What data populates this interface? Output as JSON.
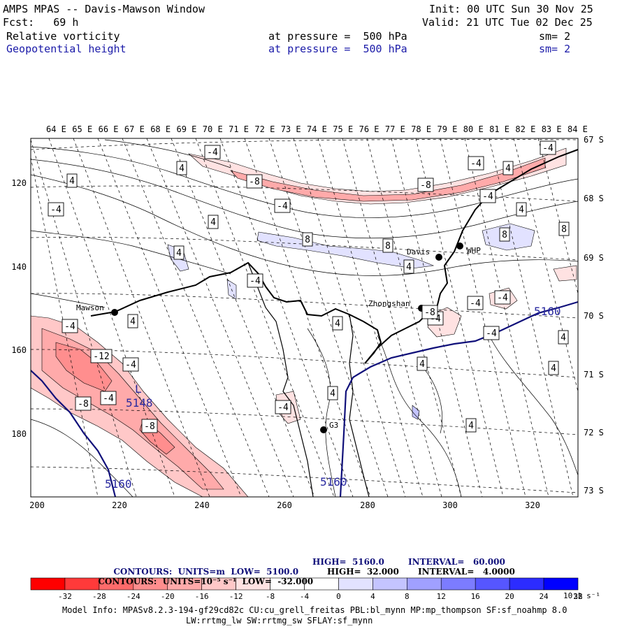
{
  "header": {
    "title": "AMPS MPAS -- Davis-Mawson Window",
    "forecast": "Fcst:   69 h",
    "init": "Init: 00 UTC Sun 30 Nov 25",
    "valid": "Valid: 21 UTC Tue 02 Dec 25",
    "field1": {
      "name": "Relative vorticity",
      "pressure": "at pressure =  500 hPa",
      "sm": "sm= 2"
    },
    "field2": {
      "name": "Geopotential height",
      "pressure": "at pressure =  500 hPa",
      "sm": "sm= 2"
    }
  },
  "map": {
    "top_lon_labels": [
      "64 E",
      "65 E",
      "66 E",
      "67 E",
      "68 E",
      "69 E",
      "70 E",
      "71 E",
      "72 E",
      "73 E",
      "74 E",
      "75 E",
      "76 E",
      "77 E",
      "78 E",
      "79 E",
      "80 E",
      "81 E",
      "82 E",
      "83 E",
      "84 E"
    ],
    "right_lat_labels": [
      "67 S",
      "68 S",
      "69 S",
      "70 S",
      "71 S",
      "72 S",
      "73 S"
    ],
    "x_ticks": [
      "200",
      "220",
      "240",
      "260",
      "280",
      "300",
      "320"
    ],
    "y_ticks": [
      "120",
      "140",
      "160",
      "180"
    ],
    "stations": [
      {
        "name": "Mawson"
      },
      {
        "name": "Davis"
      },
      {
        "name": "WHP"
      },
      {
        "name": "Zhongshan"
      },
      {
        "name": "G3"
      }
    ],
    "height_labels": [
      "5160",
      "5148",
      "5160",
      "5160"
    ],
    "low_marker": "L",
    "vort_labels": [
      "-4",
      "4",
      "4",
      "-8",
      "-4",
      "-4",
      "4",
      "-8",
      "8",
      "-4",
      "4",
      "-4",
      "8",
      "-4",
      "4",
      "4",
      "-4",
      "8",
      "8",
      "4",
      "-4",
      "-4",
      "4",
      "4",
      "-4",
      "-4",
      "4",
      "4",
      "-12",
      "-4",
      "-8",
      "-4",
      "-8",
      "4",
      "-4",
      "4",
      "4",
      "-4",
      "-8"
    ],
    "colors": {
      "height_contour": "#10107a",
      "coast": "#000000",
      "contour": "#000000"
    }
  },
  "contours_info": {
    "line1": {
      "label": "CONTOURS:  UNITS=m  LOW=  5100.0",
      "high": "HIGH=  5160.0",
      "interval": "INTERVAL=   60.000"
    },
    "line2": {
      "label": "CONTOURS:  UNITS=10⁻⁵ s⁻¹  LOW=  -32.000",
      "high": "HIGH=  32.000",
      "interval": "INTERVAL=   4.0000"
    }
  },
  "colorbar": {
    "colors": [
      "#ff0000",
      "#ff3a3a",
      "#ff6a6a",
      "#ff8e8e",
      "#ffaaaa",
      "#ffc8c8",
      "#ffe2e2",
      "#ffffff",
      "#ffffff",
      "#e2e2ff",
      "#c4c4ff",
      "#a0a0ff",
      "#7c7cff",
      "#5656ff",
      "#2c2cff",
      "#0000ff"
    ],
    "labels": [
      "-32",
      "-28",
      "-24",
      "-20",
      "-16",
      "-12",
      "-8",
      "-4",
      "0",
      "4",
      "8",
      "12",
      "16",
      "20",
      "24",
      "28",
      "32"
    ],
    "unit": "10⁻⁵ s⁻¹"
  },
  "footer": {
    "line1": "Model Info: MPASv8.2.3-194-gf29cd82c CU:cu_grell_freitas PBL:bl_mynn MP:mp_thompson SF:sf_noahmp 8.0",
    "line2": "LW:rrtmg_lw SW:rrtmg_sw SFLAY:sf_mynn"
  }
}
